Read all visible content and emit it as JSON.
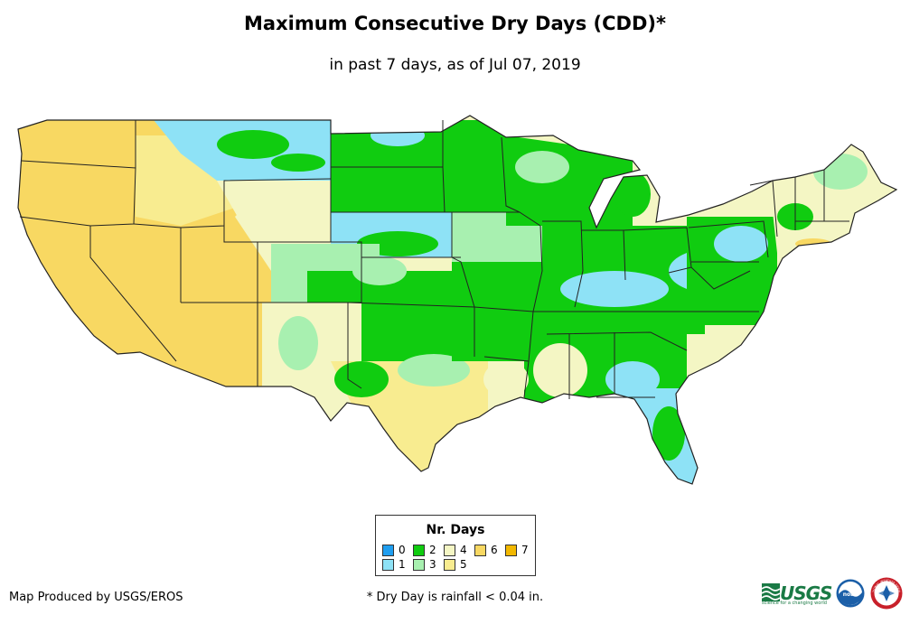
{
  "header": {
    "title": "Maximum Consecutive Dry Days (CDD)*",
    "subtitle": "in past 7 days, as of Jul 07, 2019"
  },
  "legend": {
    "title": "Nr. Days",
    "items": [
      {
        "label": "0",
        "color": "#1f9ef0"
      },
      {
        "label": "1",
        "color": "#8ee2f6"
      },
      {
        "label": "2",
        "color": "#10cc10"
      },
      {
        "label": "3",
        "color": "#a8f0b0"
      },
      {
        "label": "4",
        "color": "#f4f6c4"
      },
      {
        "label": "5",
        "color": "#f8ec90"
      },
      {
        "label": "6",
        "color": "#f8d862"
      },
      {
        "label": "7",
        "color": "#f2b800"
      }
    ]
  },
  "footer": {
    "credit": "Map Produced by USGS/EROS",
    "footnote": "* Dry Day is rainfall < 0.04 in."
  },
  "logos": {
    "usgs": "USGS",
    "usgs_tagline": "science for a changing world",
    "noaa": "noaa",
    "nws": "NATIONAL WEATHER SERVICE"
  },
  "colors": {
    "border": "#222222",
    "usgs_green": "#1a7a45",
    "noaa_blue": "#1b5fa8"
  }
}
